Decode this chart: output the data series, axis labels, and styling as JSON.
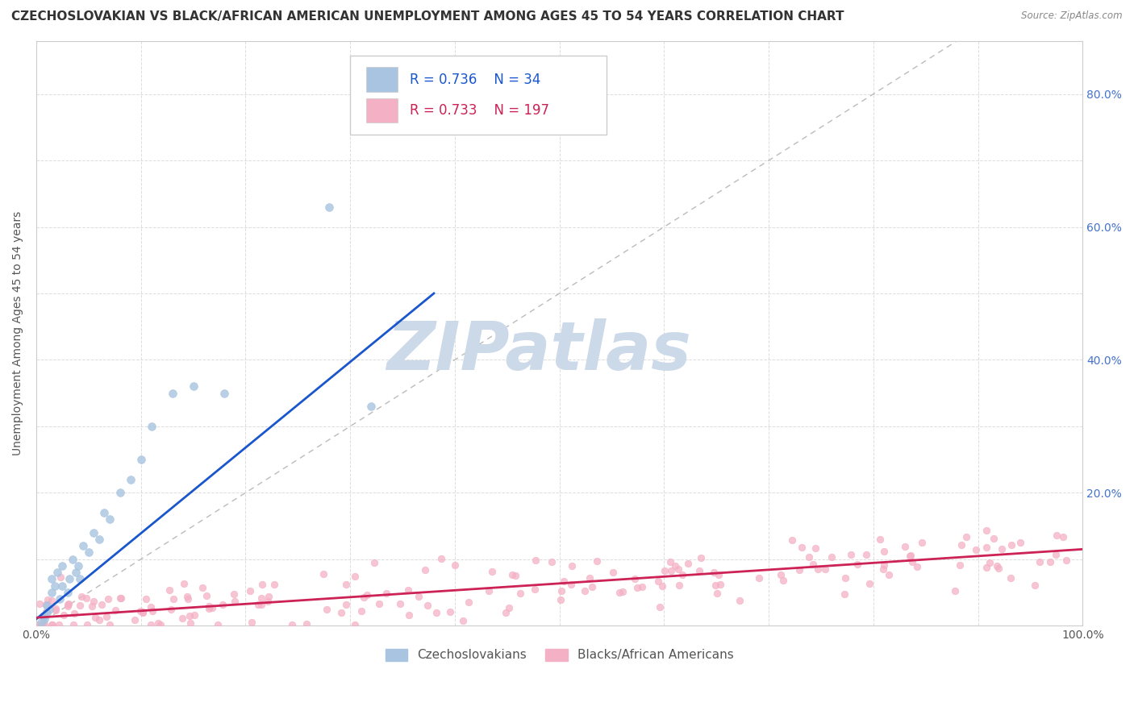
{
  "title": "CZECHOSLOVAKIAN VS BLACK/AFRICAN AMERICAN UNEMPLOYMENT AMONG AGES 45 TO 54 YEARS CORRELATION CHART",
  "source": "Source: ZipAtlas.com",
  "ylabel": "Unemployment Among Ages 45 to 54 years",
  "xlim": [
    0,
    1.0
  ],
  "ylim": [
    0,
    0.88
  ],
  "background_color": "#ffffff",
  "plot_bg_color": "#ffffff",
  "watermark_text": "ZIPatlas",
  "watermark_color": "#ccd9e8",
  "czech_color": "#a8c4e0",
  "czech_line_color": "#1a56cc",
  "black_color": "#f4b0c5",
  "black_line_color": "#cc2255",
  "diag_color": "#bbbbbb",
  "legend_R_czech": "0.736",
  "legend_N_czech": "34",
  "legend_R_black": "0.733",
  "legend_N_black": "197",
  "legend_label_czech": "Czechoslovakians",
  "legend_label_black": "Blacks/African Americans",
  "title_fontsize": 11,
  "axis_fontsize": 10,
  "tick_fontsize": 10,
  "legend_fontsize": 12,
  "watermark_fontsize": 60
}
